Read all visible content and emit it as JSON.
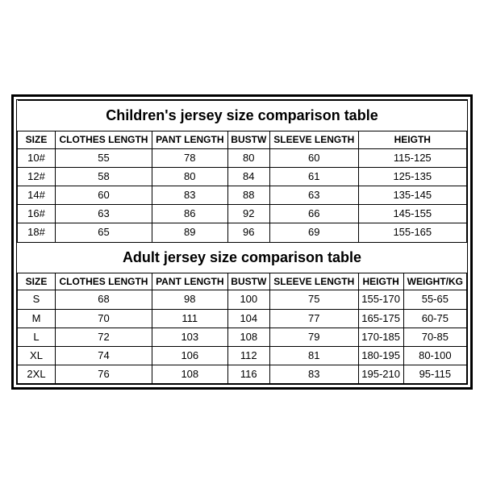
{
  "children": {
    "title": "Children's jersey size comparison table",
    "headers": [
      "SIZE",
      "CLOTHES LENGTH",
      "PANT LENGTH",
      "BUSTW",
      "SLEEVE LENGTH",
      "HEIGTH"
    ],
    "rows": [
      [
        "10#",
        "55",
        "78",
        "80",
        "60",
        "115-125"
      ],
      [
        "12#",
        "58",
        "80",
        "84",
        "61",
        "125-135"
      ],
      [
        "14#",
        "60",
        "83",
        "88",
        "63",
        "135-145"
      ],
      [
        "16#",
        "63",
        "86",
        "92",
        "66",
        "145-155"
      ],
      [
        "18#",
        "65",
        "89",
        "96",
        "69",
        "155-165"
      ]
    ]
  },
  "adult": {
    "title": "Adult jersey size comparison table",
    "headers": [
      "SIZE",
      "CLOTHES LENGTH",
      "PANT LENGTH",
      "BUSTW",
      "SLEEVE LENGTH",
      "HEIGTH",
      "WEIGHT/KG"
    ],
    "rows": [
      [
        "S",
        "68",
        "98",
        "100",
        "75",
        "155-170",
        "55-65"
      ],
      [
        "M",
        "70",
        "111",
        "104",
        "77",
        "165-175",
        "60-75"
      ],
      [
        "L",
        "72",
        "103",
        "108",
        "79",
        "170-185",
        "70-85"
      ],
      [
        "XL",
        "74",
        "106",
        "112",
        "81",
        "180-195",
        "80-100"
      ],
      [
        "2XL",
        "76",
        "108",
        "116",
        "83",
        "195-210",
        "95-115"
      ]
    ]
  },
  "style": {
    "background_color": "#ffffff",
    "border_color": "#000000",
    "title_fontsize": 18,
    "cell_fontsize": 13,
    "header_fontsize": 12
  }
}
